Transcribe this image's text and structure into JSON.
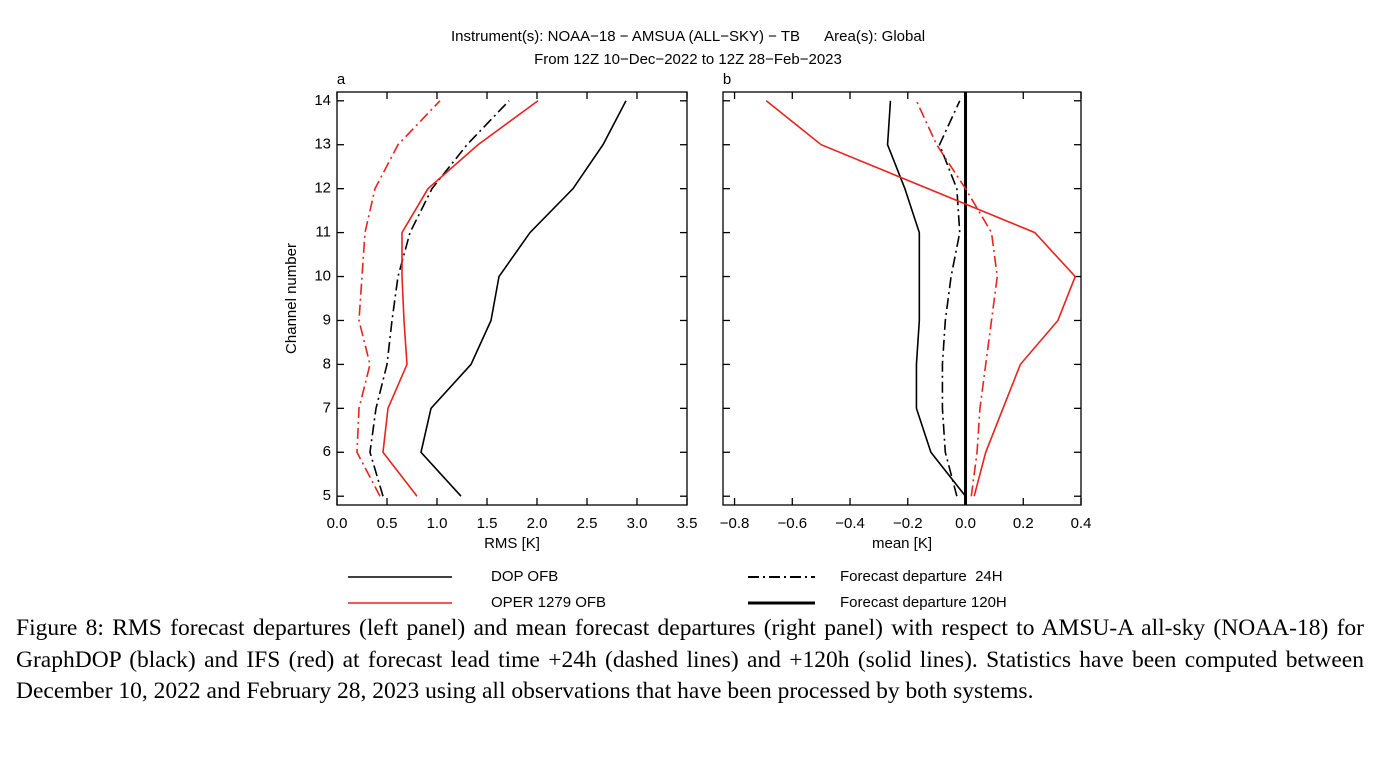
{
  "title": "Instrument(s): NOAA−18 − AMSUA (ALL−SKY) − TB      Area(s): Global",
  "subtitle": "From 12Z 10−Dec−2022 to 12Z 28−Feb−2023",
  "chart_data": [
    {
      "type": "line",
      "panel_label": "a",
      "xlabel": "RMS [K]",
      "ylabel": "Channel number",
      "categories": [
        5,
        6,
        7,
        8,
        9,
        10,
        11,
        12,
        13,
        14
      ],
      "ytick_labels": true,
      "xlim": [
        0,
        3.5
      ],
      "xticks": [
        {
          "value": 0,
          "label": "0.0"
        },
        0.5,
        {
          "value": 1,
          "label": "1.0"
        },
        1.5,
        {
          "value": 2,
          "label": "2.0"
        },
        2.5,
        {
          "value": 3,
          "label": "3.0"
        },
        3.5
      ],
      "ylim": [
        4.8,
        14.2
      ],
      "series": [
        {
          "color": "#000000",
          "dash": "solid",
          "values": [
            1.24,
            0.84,
            0.94,
            1.34,
            1.54,
            1.62,
            1.93,
            2.36,
            2.66,
            2.89
          ]
        },
        {
          "color": "#000000",
          "dash": "dashdot",
          "values": [
            0.46,
            0.33,
            0.39,
            0.5,
            0.55,
            0.61,
            0.73,
            0.95,
            1.3,
            1.72
          ]
        },
        {
          "color": "#e8231e",
          "dash": "solid",
          "values": [
            0.8,
            0.46,
            0.51,
            0.7,
            0.67,
            0.65,
            0.65,
            0.91,
            1.41,
            2.01
          ]
        },
        {
          "color": "#e8231e",
          "dash": "dashdot",
          "values": [
            0.43,
            0.2,
            0.22,
            0.33,
            0.22,
            0.25,
            0.28,
            0.38,
            0.61,
            1.03
          ]
        }
      ]
    },
    {
      "type": "line",
      "panel_label": "b",
      "xlabel": "mean [K]",
      "categories": [
        5,
        6,
        7,
        8,
        9,
        10,
        11,
        12,
        13,
        14
      ],
      "ytick_labels": false,
      "xlim": [
        -0.84,
        0.4
      ],
      "xticks": [
        {
          "value": -0.8,
          "label": "−0.8"
        },
        {
          "value": -0.6,
          "label": "−0.6"
        },
        {
          "value": -0.4,
          "label": "−0.4"
        },
        {
          "value": -0.2,
          "label": "−0.2"
        },
        {
          "value": 0,
          "label": "0.0"
        },
        0.2,
        0.4
      ],
      "ylim": [
        4.8,
        14.2
      ],
      "refline": 0,
      "series": [
        {
          "color": "#000000",
          "dash": "solid",
          "values": [
            0.0,
            -0.12,
            -0.17,
            -0.17,
            -0.16,
            -0.16,
            -0.16,
            -0.21,
            -0.27,
            -0.26
          ]
        },
        {
          "color": "#000000",
          "dash": "dashdot",
          "values": [
            -0.03,
            -0.07,
            -0.08,
            -0.08,
            -0.07,
            -0.05,
            -0.02,
            -0.03,
            -0.09,
            -0.02
          ]
        },
        {
          "color": "#e8231e",
          "dash": "solid",
          "values": [
            0.03,
            0.07,
            0.13,
            0.19,
            0.32,
            0.38,
            0.24,
            -0.13,
            -0.5,
            -0.69
          ]
        },
        {
          "color": "#e8231e",
          "dash": "dashdot",
          "values": [
            0.02,
            0.04,
            0.05,
            0.07,
            0.09,
            0.11,
            0.09,
            0.0,
            -0.1,
            -0.17
          ]
        }
      ]
    }
  ],
  "legend": [
    {
      "label": "DOP OFB",
      "color": "#000000",
      "dash": "solid",
      "width": 1.5
    },
    {
      "label": "OPER 1279 OFB",
      "color": "#e8231e",
      "dash": "solid",
      "width": 1.5
    },
    {
      "label": "Forecast departure  24H",
      "color": "#000000",
      "dash": "dashdot",
      "width": 2
    },
    {
      "label": "Forecast departure 120H",
      "color": "#000000",
      "dash": "solid",
      "width": 3
    }
  ],
  "caption": "Figure 8: RMS forecast departures (left panel) and mean forecast departures (right panel) with respect to AMSU-A all-sky (NOAA-18) for GraphDOP (black) and IFS (red) at forecast lead time +24h (dashed lines) and +120h (solid lines). Statistics have been computed between December 10, 2022 and February 28, 2023 using all observations that have been processed by both systems."
}
